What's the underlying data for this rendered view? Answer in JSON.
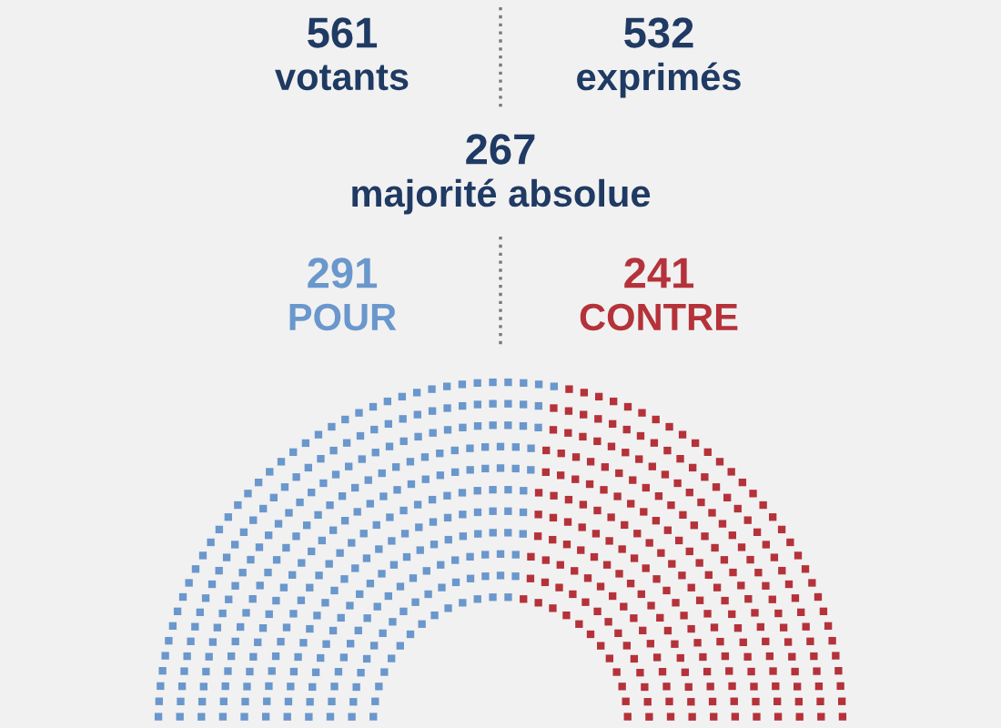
{
  "chart_data": {
    "type": "other",
    "annotations": [
      "561\nvotants",
      "532\nexprimés",
      "267\nmajorité absolue"
    ],
    "categories": [
      "POUR",
      "CONTRE"
    ],
    "values": [
      291,
      241
    ],
    "data_labels": true,
    "colors": [
      "#6a97cc",
      "#b5323a"
    ]
  }
}
